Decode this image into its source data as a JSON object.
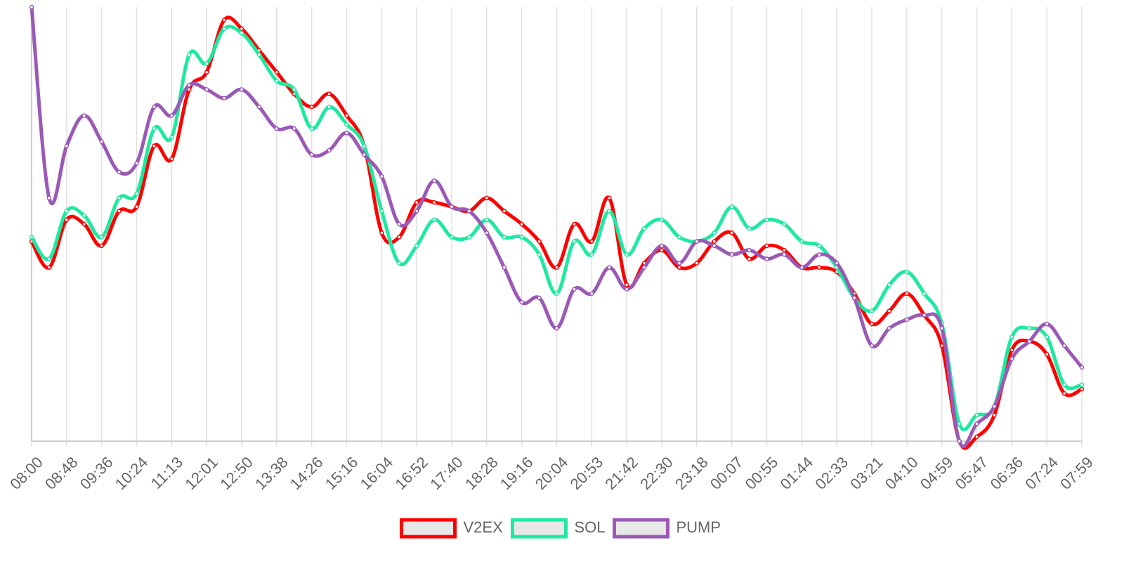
{
  "chart_data": {
    "type": "line",
    "categories": [
      "08:00",
      null,
      "08:48",
      null,
      "09:36",
      null,
      "10:24",
      null,
      "11:13",
      null,
      "12:01",
      null,
      "12:50",
      null,
      "13:38",
      null,
      "14:26",
      null,
      "15:16",
      null,
      "16:04",
      null,
      "16:52",
      null,
      "17:40",
      null,
      "18:28",
      null,
      "19:16",
      null,
      "20:04",
      null,
      "20:53",
      null,
      "21:42",
      null,
      "22:30",
      null,
      "23:18",
      null,
      "00:07",
      null,
      "00:55",
      null,
      "01:44",
      null,
      "02:33",
      null,
      "03:21",
      null,
      "04:10",
      null,
      "04:59",
      null,
      "05:47",
      null,
      "06:36",
      null,
      "07:24",
      null,
      "07:59"
    ],
    "series": [
      {
        "name": "V2EX",
        "color": "#ff0000",
        "values": [
          46,
          40,
          51,
          50,
          45,
          53,
          54,
          68,
          65,
          81,
          85,
          97,
          95,
          90,
          85,
          80,
          77,
          80,
          75,
          68,
          48,
          47,
          55,
          55,
          54,
          53,
          56,
          53,
          50,
          46,
          40,
          50,
          46,
          56,
          36,
          41,
          44,
          40,
          41,
          46,
          48,
          42,
          45,
          44,
          40,
          40,
          39,
          34,
          27,
          30,
          34,
          29,
          22,
          0,
          1,
          6,
          21,
          23,
          20,
          11,
          12
        ]
      },
      {
        "name": "SOL",
        "color": "#1de9a0",
        "values": [
          47,
          42,
          53,
          52,
          47,
          56,
          57,
          72,
          70,
          89,
          87,
          95,
          94,
          89,
          83,
          81,
          72,
          77,
          73,
          68,
          53,
          41,
          45,
          51,
          47,
          47,
          51,
          47,
          47,
          43,
          34,
          46,
          43,
          53,
          43,
          49,
          51,
          47,
          46,
          48,
          54,
          49,
          51,
          50,
          46,
          45,
          40,
          33,
          30,
          36,
          39,
          34,
          27,
          4,
          6,
          8,
          24,
          26,
          24,
          13,
          13
        ]
      },
      {
        "name": "PUMP",
        "color": "#9b59b6",
        "values": [
          100,
          56,
          68,
          75,
          69,
          62,
          64,
          77,
          75,
          82,
          81,
          79,
          81,
          77,
          72,
          72,
          66,
          67,
          71,
          66,
          61,
          50,
          53,
          60,
          54,
          53,
          48,
          40,
          32,
          33,
          26,
          35,
          34,
          40,
          35,
          40,
          45,
          41,
          46,
          45,
          43,
          44,
          42,
          43,
          40,
          43,
          41,
          33,
          22,
          26,
          28,
          29,
          26,
          0,
          4,
          8,
          19,
          23,
          27,
          22,
          17
        ]
      }
    ],
    "ylim": [
      0,
      100
    ],
    "grid": true,
    "legend": "bottom"
  }
}
